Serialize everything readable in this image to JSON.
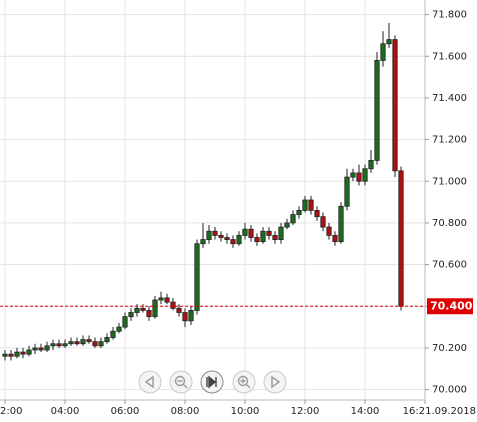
{
  "chart_data": {
    "type": "candlestick",
    "x": [
      2.0,
      2.2,
      2.4,
      2.6,
      2.8,
      3.0,
      3.2,
      3.4,
      3.6,
      3.8,
      4.0,
      4.2,
      4.4,
      4.6,
      4.8,
      5.0,
      5.2,
      5.4,
      5.6,
      5.8,
      6.0,
      6.2,
      6.4,
      6.6,
      6.8,
      7.0,
      7.2,
      7.4,
      7.6,
      7.8,
      8.0,
      8.2,
      8.4,
      8.6,
      8.8,
      9.0,
      9.2,
      9.4,
      9.6,
      9.8,
      10.0,
      10.2,
      10.4,
      10.6,
      10.8,
      11.0,
      11.2,
      11.4,
      11.6,
      11.8,
      12.0,
      12.2,
      12.4,
      12.6,
      12.8,
      13.0,
      13.2,
      13.4,
      13.6,
      13.8,
      14.0,
      14.2,
      14.4,
      14.6,
      14.8,
      15.0,
      15.2
    ],
    "open": [
      70.16,
      70.17,
      70.16,
      70.18,
      70.17,
      70.19,
      70.2,
      70.19,
      70.21,
      70.22,
      70.21,
      70.22,
      70.23,
      70.22,
      70.24,
      70.23,
      70.21,
      70.23,
      70.25,
      70.28,
      70.3,
      70.35,
      70.37,
      70.39,
      70.38,
      70.35,
      70.43,
      70.44,
      70.42,
      70.39,
      70.37,
      70.33,
      70.38,
      70.7,
      70.72,
      70.76,
      70.74,
      70.73,
      70.72,
      70.7,
      70.74,
      70.77,
      70.73,
      70.71,
      70.76,
      70.74,
      70.72,
      70.78,
      70.8,
      70.84,
      70.86,
      70.91,
      70.86,
      70.83,
      70.78,
      70.74,
      70.71,
      70.88,
      71.02,
      71.04,
      71.0,
      71.06,
      71.1,
      71.58,
      71.66,
      71.68,
      71.05
    ],
    "high": [
      70.19,
      70.19,
      70.2,
      70.2,
      70.21,
      70.22,
      70.22,
      70.23,
      70.24,
      70.24,
      70.24,
      70.25,
      70.25,
      70.26,
      70.26,
      70.25,
      70.25,
      70.27,
      70.3,
      70.32,
      70.37,
      70.39,
      70.41,
      70.41,
      70.4,
      70.45,
      70.47,
      70.46,
      70.44,
      70.41,
      70.39,
      70.4,
      70.72,
      70.8,
      70.79,
      70.78,
      70.76,
      70.75,
      70.74,
      70.76,
      70.8,
      70.79,
      70.75,
      70.78,
      70.78,
      70.76,
      70.8,
      70.82,
      70.86,
      70.88,
      70.93,
      70.93,
      70.88,
      70.85,
      70.8,
      70.76,
      70.9,
      71.06,
      71.06,
      71.08,
      71.08,
      71.15,
      71.62,
      71.72,
      71.76,
      71.7,
      71.07
    ],
    "low": [
      70.14,
      70.14,
      70.15,
      70.15,
      70.16,
      70.17,
      70.18,
      70.18,
      70.19,
      70.2,
      70.2,
      70.21,
      70.21,
      70.21,
      70.22,
      70.2,
      70.2,
      70.22,
      70.24,
      70.27,
      70.29,
      70.33,
      70.35,
      70.37,
      70.33,
      70.34,
      70.41,
      70.41,
      70.38,
      70.35,
      70.3,
      70.31,
      70.36,
      70.68,
      70.7,
      70.72,
      70.71,
      70.7,
      70.68,
      70.69,
      70.72,
      70.71,
      70.69,
      70.7,
      70.72,
      70.7,
      70.7,
      70.77,
      70.79,
      70.82,
      70.85,
      70.84,
      70.81,
      70.76,
      70.72,
      70.69,
      70.7,
      70.86,
      71.0,
      70.98,
      70.98,
      71.04,
      71.08,
      71.55,
      71.64,
      71.02,
      70.38
    ],
    "close": [
      70.17,
      70.16,
      70.18,
      70.17,
      70.19,
      70.2,
      70.19,
      70.21,
      70.22,
      70.21,
      70.22,
      70.23,
      70.22,
      70.24,
      70.23,
      70.21,
      70.23,
      70.25,
      70.28,
      70.3,
      70.35,
      70.37,
      70.39,
      70.38,
      70.35,
      70.43,
      70.44,
      70.42,
      70.39,
      70.37,
      70.33,
      70.38,
      70.7,
      70.72,
      70.76,
      70.74,
      70.73,
      70.72,
      70.7,
      70.74,
      70.77,
      70.73,
      70.71,
      70.76,
      70.74,
      70.72,
      70.78,
      70.8,
      70.84,
      70.86,
      70.91,
      70.86,
      70.83,
      70.78,
      70.74,
      70.71,
      70.88,
      71.02,
      71.04,
      71.0,
      71.06,
      71.1,
      71.58,
      71.66,
      71.68,
      71.05,
      70.4
    ],
    "up_color": "#1e6b1e",
    "down_color": "#b01010",
    "last_price": {
      "value": 70.4,
      "label": "70.400"
    },
    "last_price_color": "#e00000",
    "xlim": [
      1.8333,
      16
    ],
    "ylim": [
      69.95,
      71.87
    ],
    "xticks": [
      {
        "value": 2,
        "label": "2:00"
      },
      {
        "value": 4,
        "label": "04:00"
      },
      {
        "value": 6,
        "label": "06:00"
      },
      {
        "value": 8,
        "label": "08:00"
      },
      {
        "value": 10,
        "label": "10:00"
      },
      {
        "value": 12,
        "label": "12:00"
      },
      {
        "value": 14,
        "label": "14:00"
      },
      {
        "value": 16,
        "label": "16:21.09.2018"
      }
    ],
    "yticks": [
      {
        "value": 70.0,
        "label": "70.000"
      },
      {
        "value": 70.2,
        "label": "70.200"
      },
      {
        "value": 70.4,
        "label": "70.400"
      },
      {
        "value": 70.6,
        "label": "70.600"
      },
      {
        "value": 70.8,
        "label": "70.800"
      },
      {
        "value": 71.0,
        "label": "71.000"
      },
      {
        "value": 71.2,
        "label": "71.200"
      },
      {
        "value": 71.4,
        "label": "71.400"
      },
      {
        "value": 71.6,
        "label": "71.600"
      },
      {
        "value": 71.8,
        "label": "71.800"
      }
    ],
    "grid": true
  }
}
